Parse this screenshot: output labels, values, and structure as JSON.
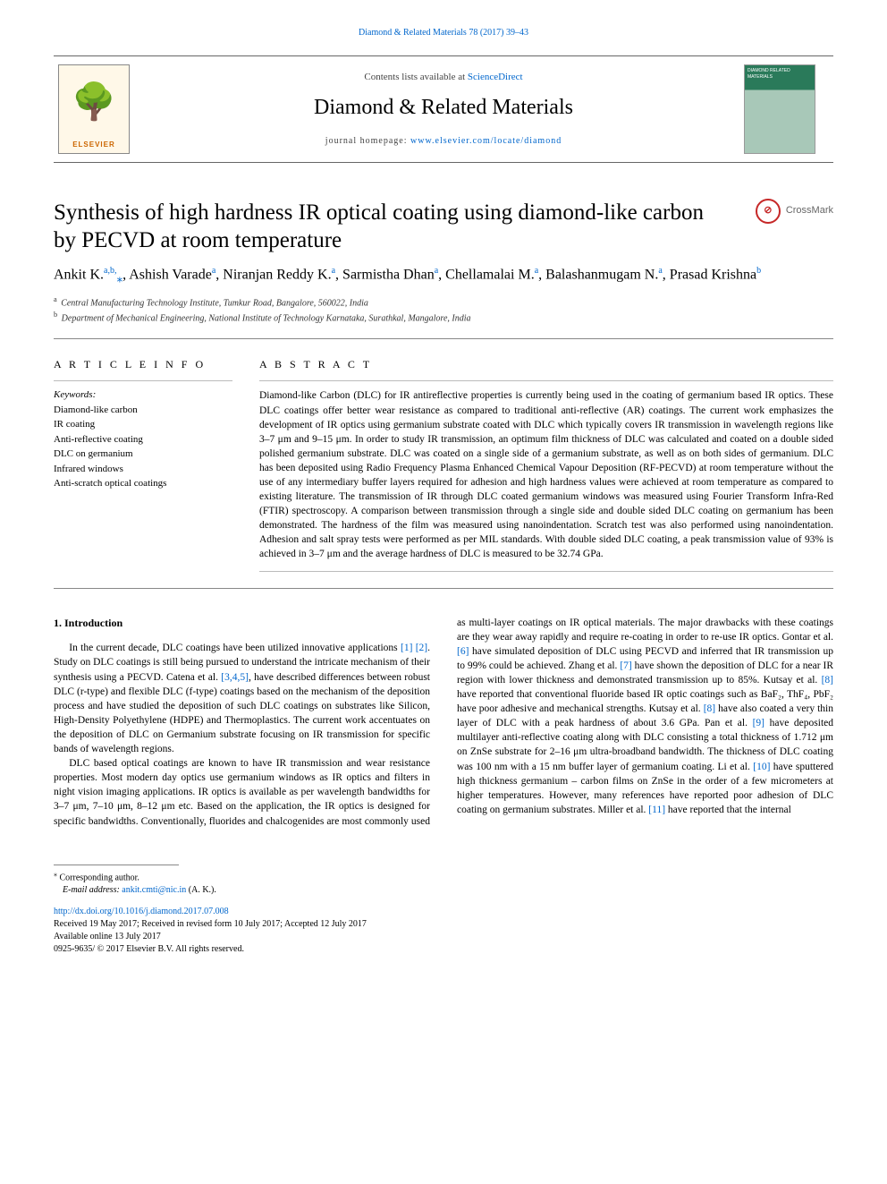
{
  "top_citation": "Diamond & Related Materials 78 (2017) 39–43",
  "header": {
    "contents_prefix": "Contents lists available at ",
    "contents_link": "ScienceDirect",
    "journal_name": "Diamond & Related Materials",
    "homepage_prefix": "journal homepage: ",
    "homepage_link": "www.elsevier.com/locate/diamond",
    "elsevier_brand": "ELSEVIER",
    "cover_text": "DIAMOND RELATED MATERIALS"
  },
  "crossmark_label": "CrossMark",
  "title": "Synthesis of high hardness IR optical coating using diamond-like carbon by PECVD at room temperature",
  "authors_html": "Ankit K.<sup class='sup-link'>a,b,</sup><sub class='sup-link'>⁎</sub>, Ashish Varade<sup class='sup-link'>a</sup>, Niranjan Reddy K.<sup class='sup-link'>a</sup>, Sarmistha Dhan<sup class='sup-link'>a</sup>, Chellamalai M.<sup class='sup-link'>a</sup>, Balashanmugam N.<sup class='sup-link'>a</sup>, Prasad Krishna<sup class='sup-link'>b</sup>",
  "affiliations": [
    {
      "mark": "a",
      "text": "Central Manufacturing Technology Institute, Tumkur Road, Bangalore, 560022, India"
    },
    {
      "mark": "b",
      "text": "Department of Mechanical Engineering, National Institute of Technology Karnataka, Surathkal, Mangalore, India"
    }
  ],
  "article_info_heading": "A R T I C L E  I N F O",
  "abstract_heading": "A B S T R A C T",
  "keywords_label": "Keywords:",
  "keywords": [
    "Diamond-like carbon",
    "IR coating",
    "Anti-reflective coating",
    "DLC on germanium",
    "Infrared windows",
    "Anti-scratch optical coatings"
  ],
  "abstract": "Diamond-like Carbon (DLC) for IR antireflective properties is currently being used in the coating of germanium based IR optics. These DLC coatings offer better wear resistance as compared to traditional anti-reflective (AR) coatings. The current work emphasizes the development of IR optics using germanium substrate coated with DLC which typically covers IR transmission in wavelength regions like 3–7 μm and 9–15 μm. In order to study IR transmission, an optimum film thickness of DLC was calculated and coated on a double sided polished germanium substrate. DLC was coated on a single side of a germanium substrate, as well as on both sides of germanium. DLC has been deposited using Radio Frequency Plasma Enhanced Chemical Vapour Deposition (RF-PECVD) at room temperature without the use of any intermediary buffer layers required for adhesion and high hardness values were achieved at room temperature as compared to existing literature. The transmission of IR through DLC coated germanium windows was measured using Fourier Transform Infra-Red (FTIR) spectroscopy. A comparison between transmission through a single side and double sided DLC coating on germanium has been demonstrated. The hardness of the film was measured using nanoindentation. Scratch test was also performed using nanoindentation. Adhesion and salt spray tests were performed as per MIL standards. With double sided DLC coating, a peak transmission value of 93% is achieved in 3–7 μm and the average hardness of DLC is measured to be 32.74 GPa.",
  "intro_heading": "1. Introduction",
  "intro_p1_a": "In the current decade, DLC coatings have been utilized innovative applications ",
  "intro_p1_b": ". Study on DLC coatings is still being pursued to understand the intricate mechanism of their synthesis using a PECVD. Catena et al. ",
  "intro_p1_c": ", have described differences between robust DLC (r-type) and flexible DLC (f-type) coatings based on the mechanism of the deposition process and have studied the deposition of such DLC coatings on substrates like Silicon, High-Density Polyethylene (HDPE) and Thermoplastics. The current work accentuates on the deposition of DLC on Germanium substrate focusing on IR transmission for specific bands of wavelength regions.",
  "intro_p2": "DLC based optical coatings are known to have IR transmission and wear resistance properties. Most modern day optics use germanium windows as IR optics and filters in night vision imaging applications. IR optics is available as per wavelength bandwidths for 3–7 μm, 7–10 μm, 8–12 μm etc. Based on the application, the IR optics is designed for specific bandwidths. Conventionally, fluorides and chalcogenides are most commonly used as multi-layer coatings on IR optical materials. The major drawbacks with these coatings are they wear away rapidly and require re-coating in order to re-use IR optics. Gontar et al. ",
  "intro_p2_b": " have simulated deposition of DLC using PECVD and inferred that IR transmission up to 99% could be achieved. Zhang et al. ",
  "intro_p2_c": " have shown the deposition of DLC for a near IR region with lower thickness and demonstrated transmission up to 85%. Kutsay et al. ",
  "intro_p2_d": " have reported that conventional fluoride based IR optic coatings such as BaF₂, ThF₄, PbF₂ have poor adhesive and mechanical strengths. Kutsay et al. ",
  "intro_p2_e": " have also coated a very thin layer of DLC with a peak hardness of about 3.6 GPa. Pan et al. ",
  "intro_p2_f": " have deposited multilayer anti-reflective coating along with DLC consisting a total thickness of 1.712 μm on ZnSe substrate for 2–16 μm ultra-broadband bandwidth. The thickness of DLC coating was 100 nm with a 15 nm buffer layer of germanium coating. Li et al. ",
  "intro_p2_g": " have sputtered high thickness germanium – carbon films on ZnSe in the order of a few micrometers at higher temperatures. However, many references have reported poor adhesion of DLC coating on germanium substrates. Miller et al. ",
  "intro_p2_h": " have reported that the internal",
  "refs": {
    "r1": "[1]",
    "r2": "[2]",
    "r345": "[3,4,5]",
    "r6": "[6]",
    "r7": "[7]",
    "r8": "[8]",
    "r8b": "[8]",
    "r9": "[9]",
    "r10": "[10]",
    "r11": "[11]"
  },
  "footer": {
    "corresp": "Corresponding author.",
    "email_label": "E-mail address: ",
    "email": "ankit.cmti@nic.in",
    "email_name": " (A. K.).",
    "doi": "http://dx.doi.org/10.1016/j.diamond.2017.07.008",
    "received": "Received 19 May 2017; Received in revised form 10 July 2017; Accepted 12 July 2017",
    "available": "Available online 13 July 2017",
    "copyright": "0925-9635/ © 2017 Elsevier B.V. All rights reserved."
  }
}
